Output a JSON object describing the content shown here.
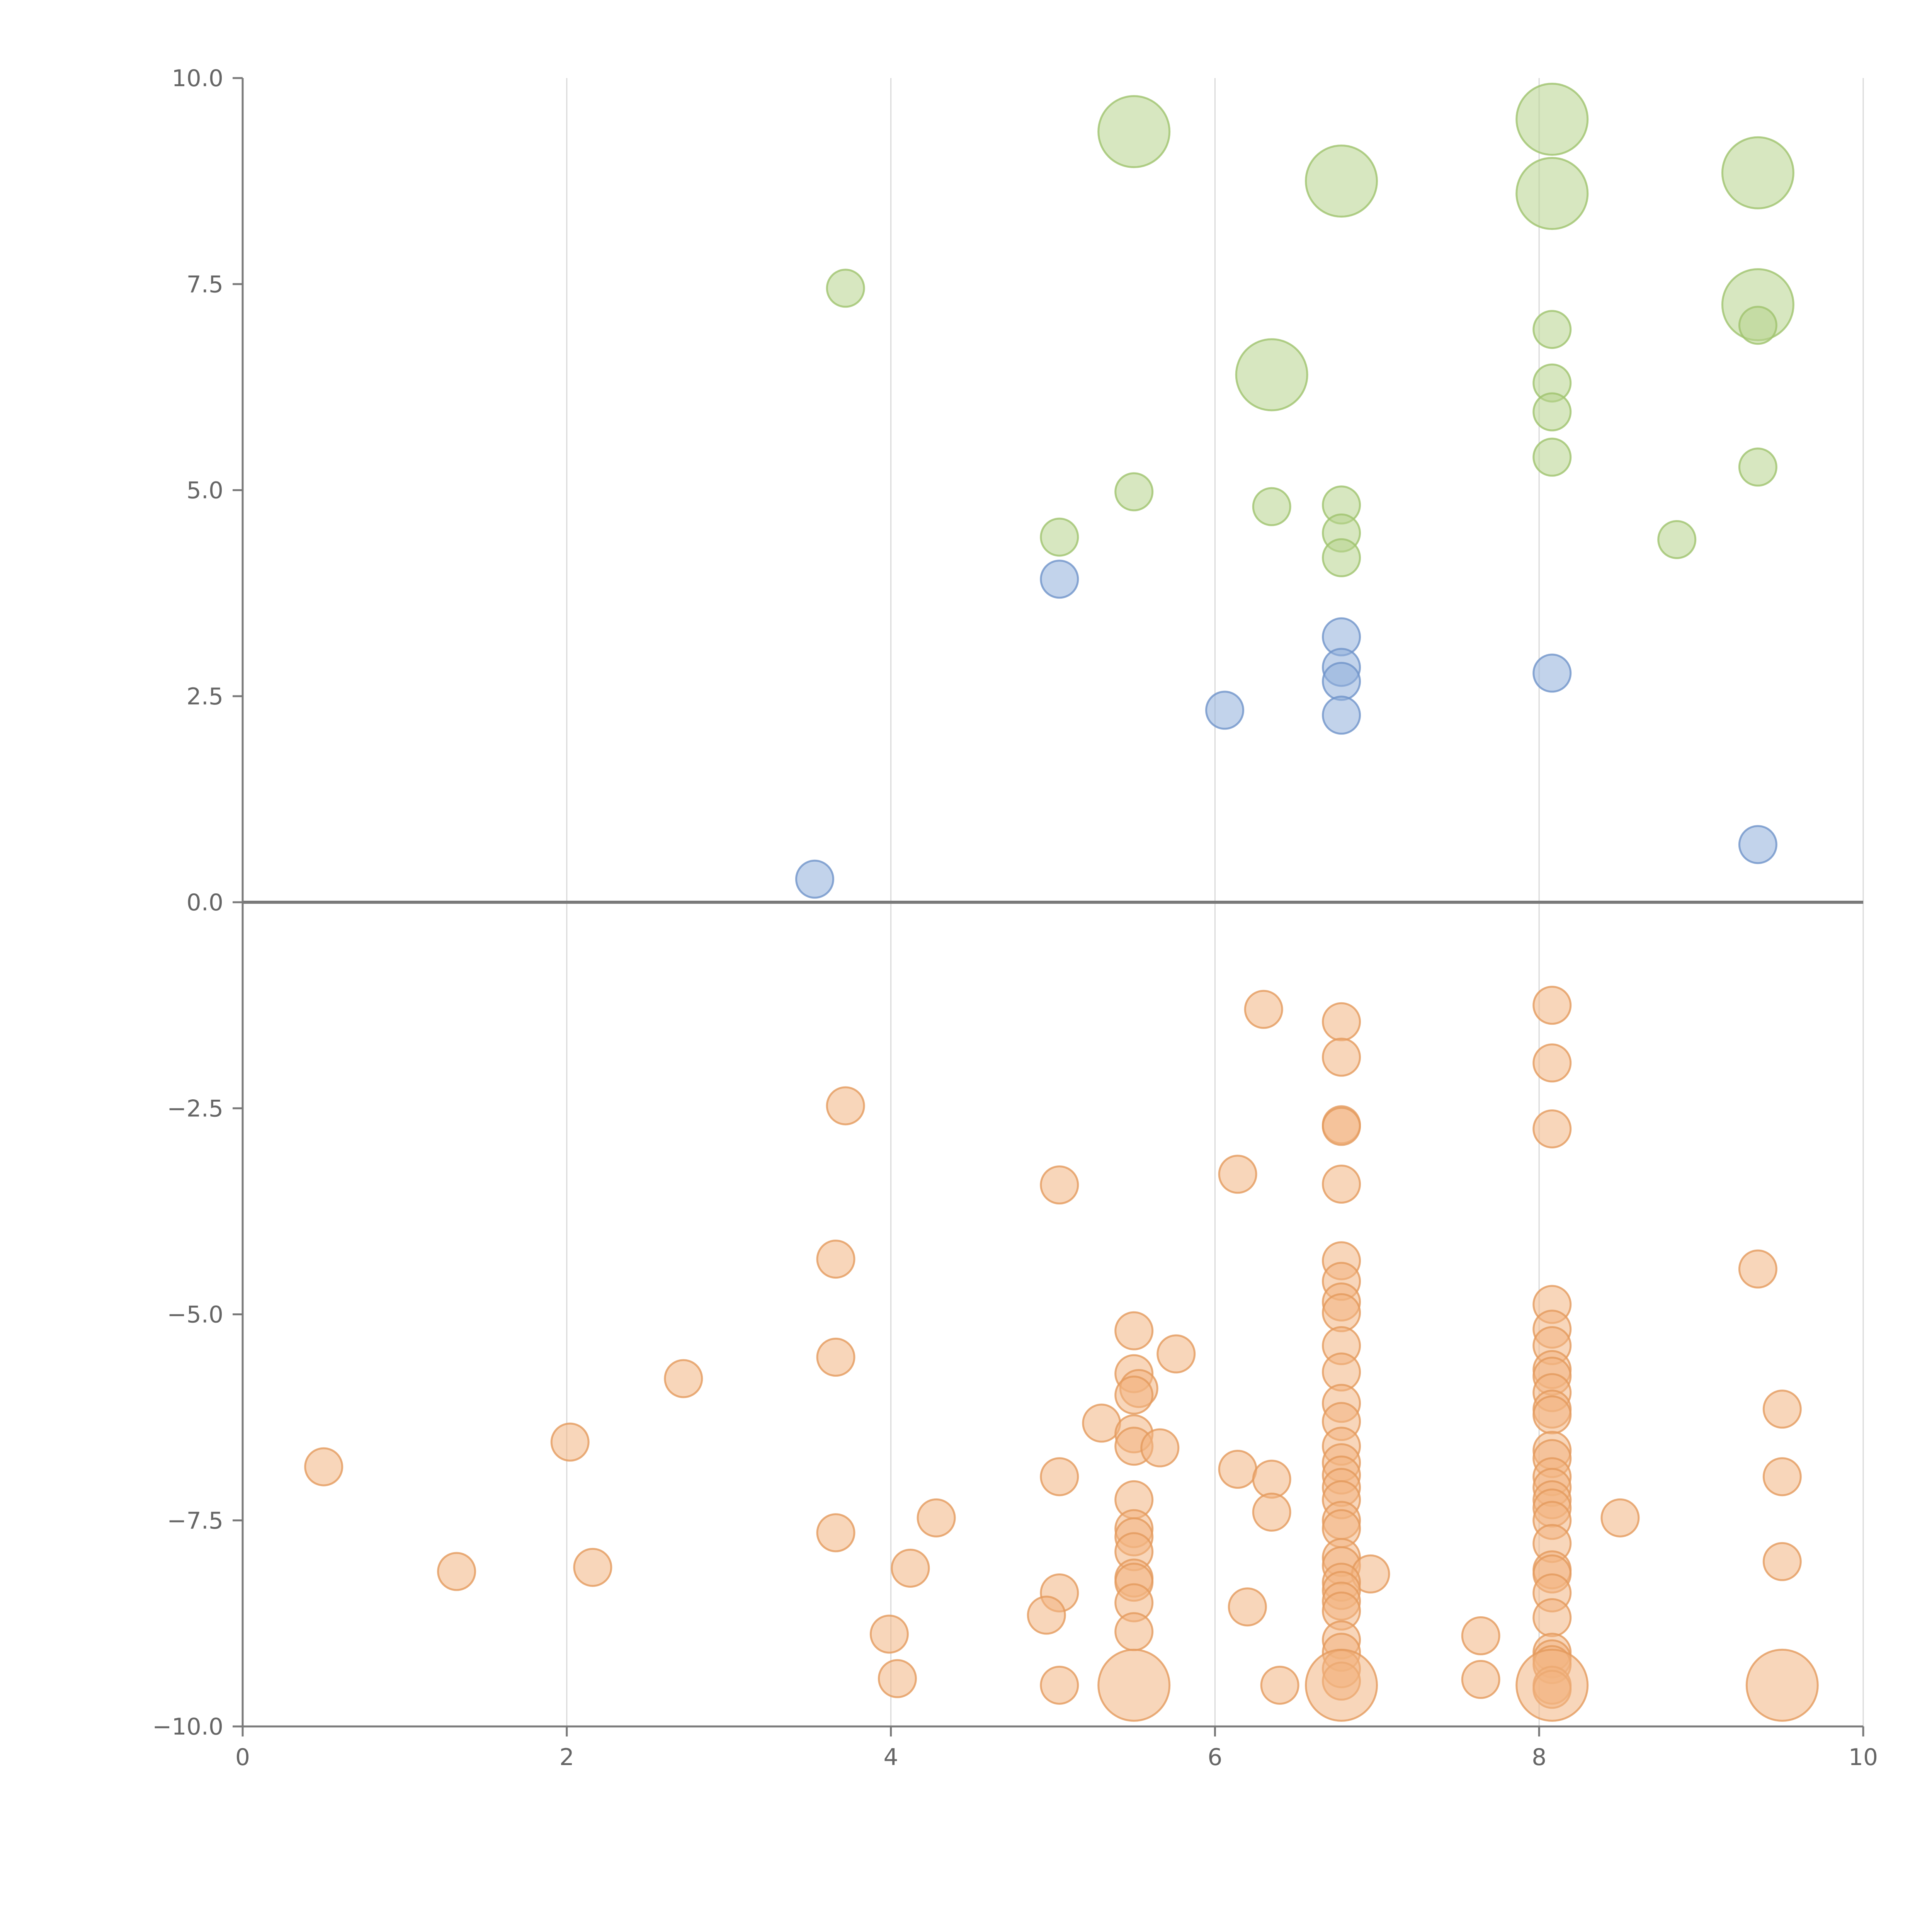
{
  "chart_data": {
    "type": "scatter",
    "title": "",
    "xlabel": "",
    "ylabel": "",
    "xlim": [
      0,
      10
    ],
    "ylim": [
      -10,
      10
    ],
    "x_ticks": [
      "0",
      "2",
      "4",
      "6",
      "8",
      "10"
    ],
    "y_ticks": [
      "10.0",
      "7.5",
      "5.0",
      "2.5",
      "0.0",
      "−2.5",
      "−5.0",
      "−7.5",
      "−10.0"
    ],
    "x_tick_values": [
      0,
      2,
      4,
      6,
      8,
      10
    ],
    "y_tick_values": [
      10,
      7.5,
      5,
      2.5,
      0,
      -2.5,
      -5,
      -7.5,
      -10
    ],
    "vertical_grid": true,
    "zero_line": true,
    "series": [
      {
        "color": "#b7d48c",
        "stroke": "#9fc36d",
        "points": [
          [
            5.5,
            9.35,
            2
          ],
          [
            8.08,
            9.5,
            2
          ],
          [
            6.78,
            8.75,
            2
          ],
          [
            8.08,
            8.6,
            2
          ],
          [
            9.35,
            8.85,
            2
          ],
          [
            9.35,
            7.25,
            2
          ],
          [
            6.35,
            6.4,
            2
          ],
          [
            3.72,
            7.45,
            0
          ],
          [
            8.08,
            6.95,
            0
          ],
          [
            9.35,
            7.0,
            0
          ],
          [
            8.08,
            6.3,
            0
          ],
          [
            8.08,
            5.95,
            0
          ],
          [
            8.08,
            5.4,
            0
          ],
          [
            9.35,
            5.28,
            0
          ],
          [
            5.5,
            4.98,
            0
          ],
          [
            6.35,
            4.8,
            0
          ],
          [
            6.78,
            4.82,
            0
          ],
          [
            6.78,
            4.48,
            0
          ],
          [
            6.78,
            4.18,
            0
          ],
          [
            5.04,
            4.43,
            0
          ],
          [
            8.85,
            4.4,
            0
          ]
        ]
      },
      {
        "color": "#8fafdb",
        "stroke": "#6f93c9",
        "points": [
          [
            5.04,
            3.92,
            0
          ],
          [
            6.78,
            3.22,
            0
          ],
          [
            6.78,
            2.85,
            0
          ],
          [
            6.78,
            2.68,
            0
          ],
          [
            6.78,
            2.27,
            0
          ],
          [
            6.06,
            2.33,
            0
          ],
          [
            8.08,
            2.78,
            0
          ],
          [
            9.35,
            0.7,
            0
          ],
          [
            3.53,
            0.28,
            0
          ]
        ]
      },
      {
        "color": "#f2b482",
        "stroke": "#e39a5c",
        "points": [
          [
            6.3,
            -1.3,
            0
          ],
          [
            6.78,
            -1.45,
            0
          ],
          [
            8.08,
            -1.25,
            0
          ],
          [
            6.78,
            -1.88,
            0
          ],
          [
            8.08,
            -1.95,
            0
          ],
          [
            3.72,
            -2.47,
            0
          ],
          [
            6.78,
            -2.7,
            0
          ],
          [
            6.78,
            -2.72,
            0
          ],
          [
            8.08,
            -2.75,
            0
          ],
          [
            5.04,
            -3.43,
            0
          ],
          [
            6.14,
            -3.3,
            0
          ],
          [
            6.78,
            -3.42,
            0
          ],
          [
            3.66,
            -4.33,
            0
          ],
          [
            9.35,
            -4.45,
            0
          ],
          [
            6.78,
            -4.35,
            0
          ],
          [
            6.78,
            -4.6,
            0
          ],
          [
            6.78,
            -4.85,
            0
          ],
          [
            6.78,
            -4.98,
            0
          ],
          [
            8.08,
            -4.88,
            0
          ],
          [
            5.5,
            -5.2,
            0
          ],
          [
            8.08,
            -5.18,
            0
          ],
          [
            8.08,
            -5.38,
            0
          ],
          [
            6.78,
            -5.38,
            0
          ],
          [
            3.66,
            -5.52,
            0
          ],
          [
            5.76,
            -5.48,
            0
          ],
          [
            2.72,
            -5.78,
            0
          ],
          [
            5.5,
            -5.72,
            0
          ],
          [
            6.78,
            -5.7,
            0
          ],
          [
            8.08,
            -5.67,
            0
          ],
          [
            8.08,
            -5.75,
            0
          ],
          [
            5.53,
            -5.9,
            0
          ],
          [
            5.5,
            -5.98,
            0
          ],
          [
            8.08,
            -5.95,
            0
          ],
          [
            9.5,
            -6.15,
            0
          ],
          [
            6.78,
            -6.08,
            0
          ],
          [
            8.08,
            -6.15,
            0
          ],
          [
            8.08,
            -6.22,
            0
          ],
          [
            6.78,
            -6.3,
            0
          ],
          [
            5.3,
            -6.32,
            0
          ],
          [
            2.02,
            -6.55,
            0
          ],
          [
            5.5,
            -6.45,
            0
          ],
          [
            5.5,
            -6.6,
            0
          ],
          [
            5.66,
            -6.62,
            0
          ],
          [
            8.08,
            -6.65,
            0
          ],
          [
            8.08,
            -6.75,
            0
          ],
          [
            6.78,
            -6.6,
            0
          ],
          [
            6.78,
            -6.8,
            0
          ],
          [
            0.5,
            -6.85,
            0
          ],
          [
            6.14,
            -6.88,
            0
          ],
          [
            6.78,
            -6.95,
            0
          ],
          [
            5.04,
            -6.97,
            0
          ],
          [
            6.35,
            -7.0,
            0
          ],
          [
            9.5,
            -6.97,
            0
          ],
          [
            8.08,
            -6.97,
            0
          ],
          [
            8.08,
            -7.1,
            0
          ],
          [
            6.78,
            -7.1,
            0
          ],
          [
            6.78,
            -7.25,
            0
          ],
          [
            5.5,
            -7.25,
            0
          ],
          [
            8.08,
            -7.25,
            0
          ],
          [
            8.08,
            -7.35,
            0
          ],
          [
            6.35,
            -7.4,
            0
          ],
          [
            4.28,
            -7.47,
            0
          ],
          [
            8.5,
            -7.47,
            0
          ],
          [
            8.08,
            -7.5,
            0
          ],
          [
            6.78,
            -7.5,
            0
          ],
          [
            6.78,
            -7.6,
            0
          ],
          [
            5.5,
            -7.6,
            0
          ],
          [
            3.66,
            -7.65,
            0
          ],
          [
            5.5,
            -7.7,
            0
          ],
          [
            8.08,
            -7.78,
            0
          ],
          [
            5.5,
            -7.88,
            0
          ],
          [
            6.78,
            -7.95,
            0
          ],
          [
            9.5,
            -8.0,
            0
          ],
          [
            6.78,
            -8.05,
            0
          ],
          [
            4.12,
            -8.08,
            0
          ],
          [
            2.16,
            -8.07,
            0
          ],
          [
            1.32,
            -8.12,
            0
          ],
          [
            6.96,
            -8.15,
            0
          ],
          [
            8.08,
            -8.1,
            0
          ],
          [
            8.08,
            -8.15,
            0
          ],
          [
            5.5,
            -8.2,
            0
          ],
          [
            5.5,
            -8.25,
            0
          ],
          [
            6.78,
            -8.25,
            0
          ],
          [
            6.78,
            -8.35,
            0
          ],
          [
            5.04,
            -8.38,
            0
          ],
          [
            8.08,
            -8.38,
            0
          ],
          [
            6.78,
            -8.48,
            0
          ],
          [
            5.5,
            -8.5,
            0
          ],
          [
            6.2,
            -8.55,
            0
          ],
          [
            6.78,
            -8.6,
            0
          ],
          [
            4.96,
            -8.65,
            0
          ],
          [
            8.08,
            -8.68,
            0
          ],
          [
            3.99,
            -8.88,
            0
          ],
          [
            5.5,
            -8.85,
            0
          ],
          [
            7.64,
            -8.9,
            0
          ],
          [
            6.78,
            -8.95,
            0
          ],
          [
            6.78,
            -9.1,
            0
          ],
          [
            8.08,
            -9.1,
            0
          ],
          [
            8.08,
            -9.18,
            0
          ],
          [
            8.08,
            -9.25,
            0
          ],
          [
            6.78,
            -9.3,
            0
          ],
          [
            4.04,
            -9.42,
            0
          ],
          [
            7.64,
            -9.43,
            0
          ],
          [
            6.4,
            -9.5,
            0
          ],
          [
            5.04,
            -9.5,
            0
          ],
          [
            6.78,
            -9.45,
            0
          ],
          [
            8.08,
            -9.5,
            0
          ],
          [
            8.08,
            -9.55,
            0
          ],
          [
            5.5,
            -9.5,
            2
          ],
          [
            6.78,
            -9.5,
            2
          ],
          [
            8.08,
            -9.5,
            2
          ],
          [
            9.5,
            -9.5,
            2
          ]
        ]
      }
    ]
  }
}
